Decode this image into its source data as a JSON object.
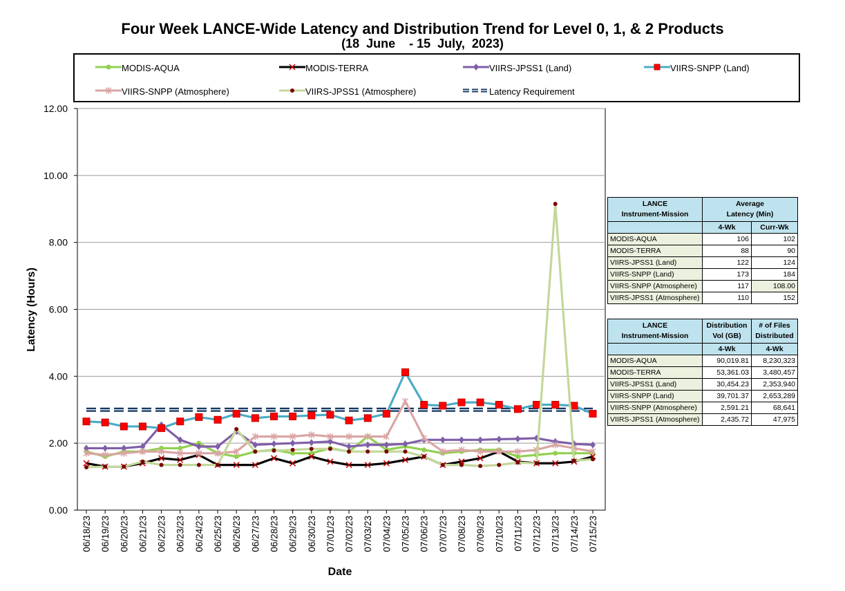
{
  "title": "Four Week LANCE-Wide Latency and Distribution Trend for Level 0, 1, & 2 Products",
  "subtitle": "(18  June    - 15  July,  2023)",
  "chart_data": {
    "type": "line",
    "xlabel": "Date",
    "ylabel": "Latency (Hours)",
    "ylim": [
      0,
      12
    ],
    "yticks": [
      "0.00",
      "2.00",
      "4.00",
      "6.00",
      "8.00",
      "10.00",
      "12.00"
    ],
    "grid": true,
    "legend_position": "top",
    "categories": [
      "06/18/23",
      "06/19/23",
      "06/20/23",
      "06/21/23",
      "06/22/23",
      "06/23/23",
      "06/24/23",
      "06/25/23",
      "06/26/23",
      "06/27/23",
      "06/28/23",
      "06/29/23",
      "06/30/23",
      "07/01/23",
      "07/02/23",
      "07/03/23",
      "07/04/23",
      "07/05/23",
      "07/06/23",
      "07/07/23",
      "07/08/23",
      "07/09/23",
      "07/10/23",
      "07/11/23",
      "07/12/23",
      "07/13/23",
      "07/14/23",
      "07/15/23"
    ],
    "series": [
      {
        "name": "MODIS-AQUA",
        "color": "#92d050",
        "marker": "circle",
        "values": [
          1.75,
          1.6,
          1.75,
          1.75,
          1.85,
          1.85,
          2.0,
          1.7,
          1.6,
          1.75,
          1.8,
          1.7,
          1.7,
          1.85,
          1.75,
          2.2,
          1.8,
          1.9,
          1.8,
          1.7,
          1.75,
          1.8,
          1.8,
          1.6,
          1.65,
          1.7,
          1.7,
          1.7
        ]
      },
      {
        "name": "MODIS-TERRA",
        "color": "#000000",
        "marker": "x",
        "values": [
          1.4,
          1.3,
          1.3,
          1.4,
          1.55,
          1.5,
          1.65,
          1.35,
          1.35,
          1.35,
          1.55,
          1.4,
          1.6,
          1.45,
          1.35,
          1.35,
          1.4,
          1.5,
          1.6,
          1.35,
          1.45,
          1.55,
          1.75,
          1.45,
          1.4,
          1.4,
          1.45,
          1.6
        ]
      },
      {
        "name": "VIIRS-JPSS1 (Land)",
        "color": "#7f5fa8",
        "marker": "diamond",
        "values": [
          1.85,
          1.85,
          1.85,
          1.9,
          2.55,
          2.1,
          1.9,
          1.9,
          2.35,
          1.95,
          1.98,
          2.0,
          2.02,
          2.05,
          1.9,
          1.95,
          1.95,
          1.98,
          2.1,
          2.1,
          2.1,
          2.1,
          2.12,
          2.13,
          2.15,
          2.05,
          1.98,
          1.95
        ]
      },
      {
        "name": "VIIRS-SNPP (Land)",
        "color": "#4bacc6",
        "marker": "square",
        "values": [
          2.65,
          2.62,
          2.5,
          2.5,
          2.45,
          2.65,
          2.78,
          2.7,
          2.88,
          2.75,
          2.8,
          2.8,
          2.83,
          2.85,
          2.68,
          2.75,
          2.88,
          4.12,
          3.15,
          3.12,
          3.22,
          3.22,
          3.15,
          3.02,
          3.15,
          3.15,
          3.12,
          2.88
        ]
      },
      {
        "name": "VIIRS-SNPP (Atmosphere)",
        "color": "#d9a5a4",
        "marker": "star",
        "values": [
          1.7,
          1.65,
          1.7,
          1.75,
          1.75,
          1.7,
          1.7,
          1.7,
          1.75,
          2.2,
          2.2,
          2.2,
          2.25,
          2.2,
          2.2,
          2.2,
          2.2,
          3.25,
          2.15,
          1.75,
          1.8,
          1.75,
          1.75,
          1.75,
          1.8,
          1.95,
          1.85,
          1.75
        ]
      },
      {
        "name": "VIIRS-JPSS1 (Atmosphere)",
        "color": "#c4d79b",
        "marker": "dot",
        "values": [
          1.28,
          1.3,
          1.3,
          1.45,
          1.35,
          1.35,
          1.35,
          1.35,
          2.42,
          1.75,
          1.78,
          1.8,
          1.83,
          1.83,
          1.75,
          1.75,
          1.75,
          1.75,
          1.6,
          1.35,
          1.35,
          1.32,
          1.35,
          1.42,
          1.4,
          9.15,
          1.48,
          1.52
        ]
      }
    ],
    "reference_line": {
      "name": "Latency Requirement",
      "value": 3.0,
      "color": "#17375e"
    }
  },
  "legend": {
    "items": [
      {
        "label": "MODIS-AQUA"
      },
      {
        "label": "MODIS-TERRA"
      },
      {
        "label": "VIIRS-JPSS1 (Land)"
      },
      {
        "label": "VIIRS-SNPP (Land)"
      },
      {
        "label": "VIIRS-SNPP (Atmosphere)"
      },
      {
        "label": "VIIRS-JPSS1 (Atmosphere)"
      },
      {
        "label": "Latency Requirement"
      }
    ]
  },
  "latency_table": {
    "header_col1": "LANCE\nInstrument-Mission",
    "header_col2": "Average\nLatency (Min)",
    "sub_4wk": "4-Wk",
    "sub_curr": "Curr-Wk",
    "rows": [
      {
        "name": "MODIS-AQUA",
        "wk4": "106",
        "curr": "102"
      },
      {
        "name": "MODIS-TERRA",
        "wk4": "88",
        "curr": "90"
      },
      {
        "name": "VIIRS-JPSS1 (Land)",
        "wk4": "122",
        "curr": "124"
      },
      {
        "name": "VIIRS-SNPP (Land)",
        "wk4": "173",
        "curr": "184"
      },
      {
        "name": "VIIRS-SNPP (Atmosphere)",
        "wk4": "117",
        "curr": "108.00"
      },
      {
        "name": "VIIRS-JPSS1 (Atmosphere)",
        "wk4": "110",
        "curr": "152"
      }
    ]
  },
  "distribution_table": {
    "header_col1": "LANCE\nInstrument-Mission",
    "header_col2": "Distribution\nVol (GB)",
    "header_col3": "# of Files\nDistributed",
    "sub_4wk": "4-Wk",
    "rows": [
      {
        "name": "MODIS-AQUA",
        "vol": "90,019.81",
        "files": "8,230,323"
      },
      {
        "name": "MODIS-TERRA",
        "vol": "53,361.03",
        "files": "3,480,457"
      },
      {
        "name": "VIIRS-JPSS1 (Land)",
        "vol": "30,454.23",
        "files": "2,353,940"
      },
      {
        "name": "VIIRS-SNPP (Land)",
        "vol": "39,701.37",
        "files": "2,653,289"
      },
      {
        "name": "VIIRS-SNPP (Atmosphere)",
        "vol": "2,591.21",
        "files": "68,641"
      },
      {
        "name": "VIIRS-JPSS1 (Atmosphere)",
        "vol": "2,435.72",
        "files": "47,975"
      }
    ]
  }
}
